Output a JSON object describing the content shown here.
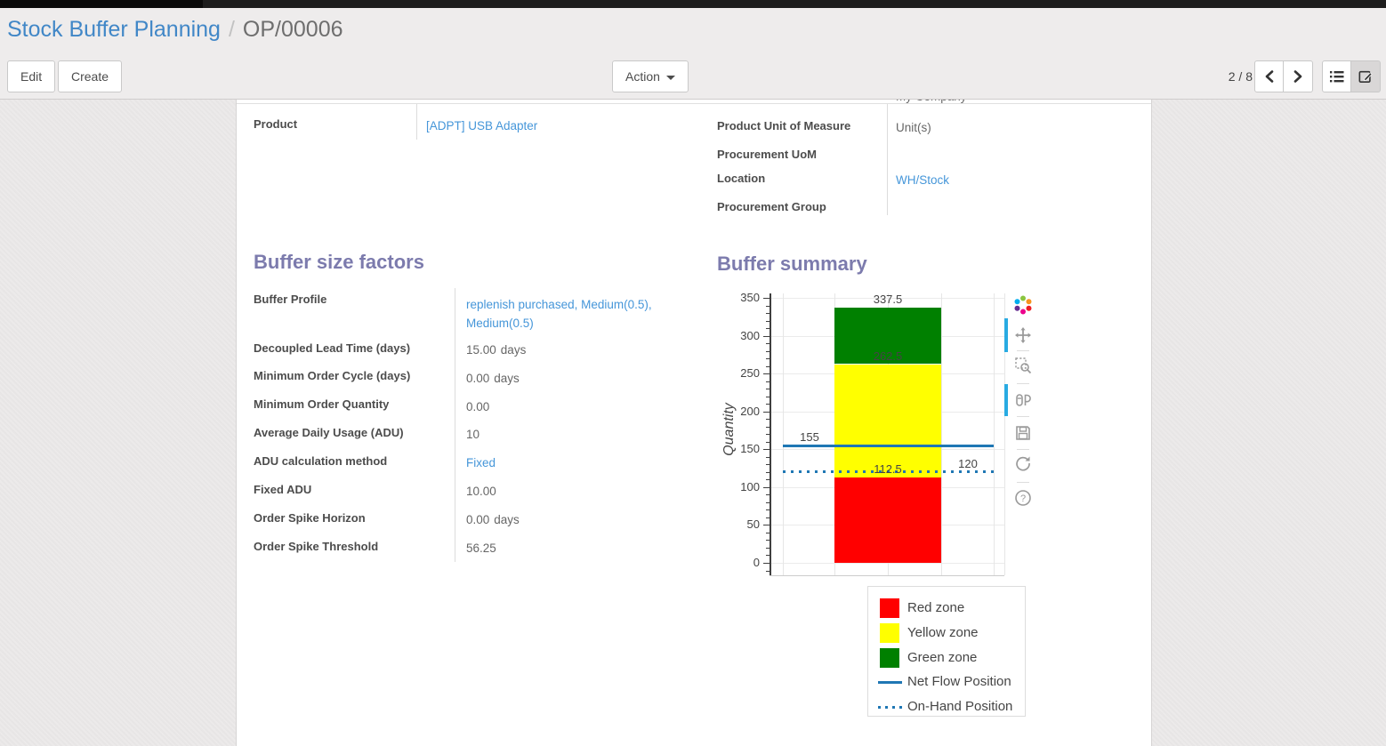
{
  "breadcrumb": {
    "parent": "Stock Buffer Planning",
    "separator": "/",
    "current": "OP/00006"
  },
  "toolbar": {
    "edit_label": "Edit",
    "create_label": "Create",
    "action_label": "Action",
    "pager_text": "2 / 8",
    "view_switcher": {
      "icons": [
        "list-view-icon",
        "form-view-icon"
      ],
      "active": "form"
    }
  },
  "form": {
    "clipped_row_value": "My Company",
    "left_group": [
      {
        "label": "Product",
        "value": "[ADPT] USB Adapter",
        "link": true
      }
    ],
    "right_group": [
      {
        "label": "Product Unit of Measure",
        "value": "Unit(s)"
      },
      {
        "label": "Procurement UoM",
        "value": ""
      },
      {
        "label": "Location",
        "value": "WH/Stock",
        "link": true
      },
      {
        "label": "Procurement Group",
        "value": ""
      }
    ],
    "buffer_factors": {
      "heading": "Buffer size factors",
      "rows": [
        {
          "label": "Buffer Profile",
          "value": "replenish purchased, Medium(0.5), Medium(0.5)",
          "link": true
        },
        {
          "label": "Decoupled Lead Time (days)",
          "value": "15.00",
          "unit": "days"
        },
        {
          "label": "Minimum Order Cycle (days)",
          "value": "0.00",
          "unit": "days"
        },
        {
          "label": "Minimum Order Quantity",
          "value": "0.00"
        },
        {
          "label": "Average Daily Usage (ADU)",
          "value": "10"
        },
        {
          "label": "ADU calculation method",
          "value": "Fixed",
          "link": true
        },
        {
          "label": "Fixed ADU",
          "value": "10.00"
        },
        {
          "label": "Order Spike Horizon",
          "value": "0.00",
          "unit": "days"
        },
        {
          "label": "Order Spike Threshold",
          "value": "56.25"
        }
      ]
    },
    "buffer_summary_heading": "Buffer summary"
  },
  "chart_data": {
    "type": "bar",
    "title": "",
    "xlabel": "",
    "ylabel": "Quantity",
    "ylim": [
      0,
      350
    ],
    "ytick_step": 50,
    "grid": true,
    "zones": [
      {
        "name": "Red zone",
        "from": 0,
        "to": 112.5,
        "color": "#ff0000"
      },
      {
        "name": "Yellow zone",
        "from": 112.5,
        "to": 262.5,
        "color": "#ffff00"
      },
      {
        "name": "Green zone",
        "from": 262.5,
        "to": 337.5,
        "color": "#008000"
      }
    ],
    "lines": [
      {
        "name": "Net Flow Position",
        "value": 155,
        "style": "solid",
        "color": "#1f77b4"
      },
      {
        "name": "On-Hand Position",
        "value": 120,
        "style": "dotted",
        "color": "#1f77b4"
      }
    ],
    "annotations": [
      {
        "text": "337.5",
        "value": 337.5,
        "anchor": "bar-center"
      },
      {
        "text": "262.5",
        "value": 262.5,
        "anchor": "bar-center"
      },
      {
        "text": "112.5",
        "value": 112.5,
        "anchor": "bar-center"
      },
      {
        "text": "155",
        "value": 155,
        "anchor": "left-of-line"
      },
      {
        "text": "120",
        "value": 120,
        "anchor": "right-of-line"
      }
    ],
    "legend": [
      {
        "label": "Red zone",
        "swatch": "box",
        "color": "#ff0000"
      },
      {
        "label": "Yellow zone",
        "swatch": "box",
        "color": "#ffff00"
      },
      {
        "label": "Green zone",
        "swatch": "box",
        "color": "#008000"
      },
      {
        "label": "Net Flow Position",
        "swatch": "line",
        "color": "#1f77b4"
      },
      {
        "label": "On-Hand Position",
        "swatch": "dotted-line",
        "color": "#1f77b4"
      }
    ],
    "legend_position": "bottom-right",
    "modebar_icons": [
      "plotly-logo",
      "pan-icon",
      "zoom-box-icon",
      "compare-hover-icon",
      "save-icon",
      "reset-axes-icon",
      "help-icon"
    ]
  }
}
